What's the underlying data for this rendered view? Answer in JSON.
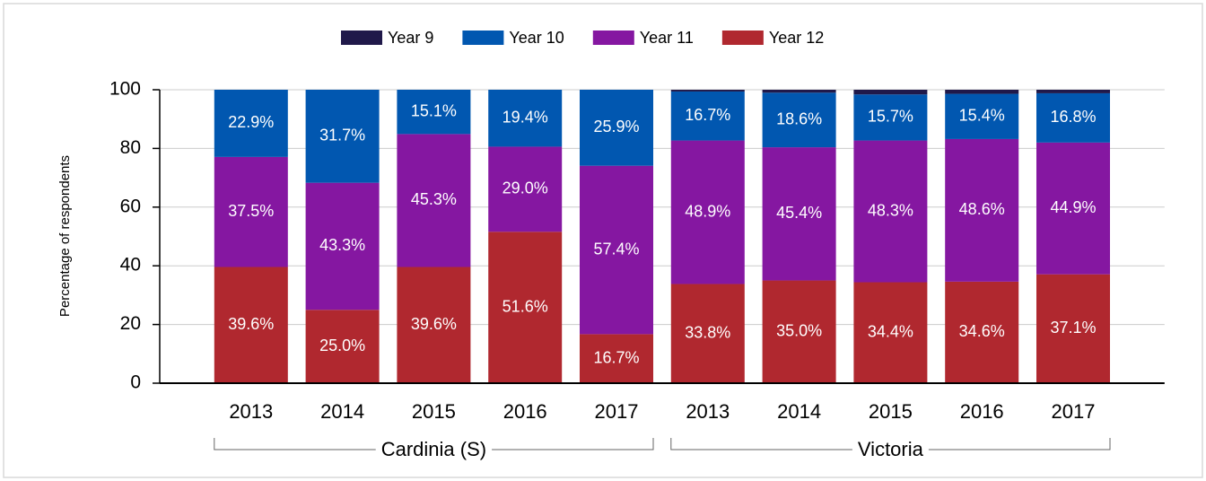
{
  "chart_data": {
    "type": "stacked_bar",
    "y_label": "Percentage of respondents",
    "categories": [
      "2013",
      "2014",
      "2015",
      "2016",
      "2017",
      "2013",
      "2014",
      "2015",
      "2016",
      "2017"
    ],
    "groups": [
      {
        "name": "Cardinia (S)",
        "count": 5
      },
      {
        "name": "Victoria",
        "count": 5
      }
    ],
    "series": [
      {
        "name": "Year 9",
        "color": "#20194a",
        "values": [
          0,
          0,
          0,
          0,
          0,
          0.6,
          1.0,
          1.6,
          1.4,
          1.2
        ]
      },
      {
        "name": "Year 10",
        "color": "#0157b0",
        "values": [
          22.9,
          31.7,
          15.1,
          19.4,
          25.9,
          16.7,
          18.6,
          15.7,
          15.4,
          16.8
        ],
        "value_labels": [
          "22.9%",
          "31.7%",
          "15.1%",
          "19.4%",
          "25.9%",
          "16.7%",
          "18.6%",
          "15.7%",
          "15.4%",
          "16.8%"
        ]
      },
      {
        "name": "Year 11",
        "color": "#8517a1",
        "values": [
          37.5,
          43.3,
          45.3,
          29.0,
          57.4,
          48.9,
          45.4,
          48.3,
          48.6,
          44.9
        ],
        "value_labels": [
          "37.5%",
          "43.3%",
          "45.3%",
          "29.0%",
          "57.4%",
          "48.9%",
          "45.4%",
          "48.3%",
          "48.6%",
          "44.9%"
        ]
      },
      {
        "name": "Year 12",
        "color": "#b0282f",
        "values": [
          39.6,
          25.0,
          39.6,
          51.6,
          16.7,
          33.8,
          35.0,
          34.4,
          34.6,
          37.1
        ],
        "value_labels": [
          "39.6%",
          "25.0%",
          "39.6%",
          "51.6%",
          "16.7%",
          "33.8%",
          "35.0%",
          "34.4%",
          "34.6%",
          "37.1%"
        ]
      }
    ],
    "ylim": [
      0,
      100
    ],
    "yticks": [
      0,
      20,
      40,
      60,
      80,
      100
    ],
    "grid": true,
    "legend": "top"
  }
}
